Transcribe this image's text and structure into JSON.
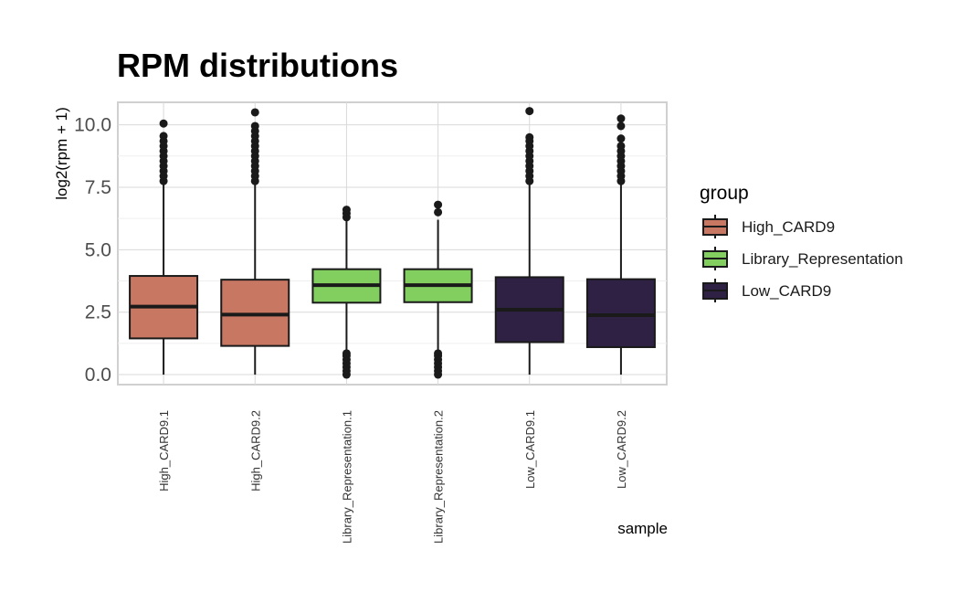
{
  "chart_data": {
    "type": "box",
    "title": "RPM distributions",
    "xlabel": "sample",
    "ylabel": "log2(rpm + 1)",
    "ylim": [
      -0.4,
      10.9
    ],
    "yticks": [
      "0.0",
      "2.5",
      "5.0",
      "7.5",
      "10.0"
    ],
    "ytick_values": [
      0,
      2.5,
      5,
      7.5,
      10
    ],
    "grid": true,
    "legend": {
      "title": "group",
      "placement": "right",
      "entries": [
        "High_CARD9",
        "Library_Representation",
        "Low_CARD9"
      ]
    },
    "group_colors": {
      "High_CARD9": "#c87763",
      "Library_Representation": "#82cf5f",
      "Low_CARD9": "#2f2143"
    },
    "categories": [
      "High_CARD9.1",
      "High_CARD9.2",
      "Library_Representation.1",
      "Library_Representation.2",
      "Low_CARD9.1",
      "Low_CARD9.2"
    ],
    "boxes": [
      {
        "sample": "High_CARD9.1",
        "group": "High_CARD9",
        "min": 0.0,
        "q1": 1.45,
        "median": 2.72,
        "q3": 3.95,
        "max": 7.7,
        "outliers_high": [
          7.75,
          7.95,
          8.15,
          8.35,
          8.55,
          8.75,
          8.95,
          9.15,
          9.35,
          9.55,
          10.05
        ],
        "outliers_low": []
      },
      {
        "sample": "High_CARD9.2",
        "group": "High_CARD9",
        "min": 0.0,
        "q1": 1.15,
        "median": 2.4,
        "q3": 3.8,
        "max": 7.7,
        "outliers_high": [
          7.75,
          7.95,
          8.15,
          8.35,
          8.55,
          8.75,
          8.95,
          9.15,
          9.35,
          9.55,
          9.75,
          9.95,
          10.5
        ],
        "outliers_low": []
      },
      {
        "sample": "Library_Representation.1",
        "group": "Library_Representation",
        "min": 0.9,
        "q1": 2.88,
        "median": 3.58,
        "q3": 4.22,
        "max": 6.2,
        "outliers_high": [
          6.3,
          6.45,
          6.6
        ],
        "outliers_low": [
          0.0,
          0.15,
          0.3,
          0.45,
          0.6,
          0.75,
          0.85
        ]
      },
      {
        "sample": "Library_Representation.2",
        "group": "Library_Representation",
        "min": 0.9,
        "q1": 2.9,
        "median": 3.58,
        "q3": 4.22,
        "max": 6.2,
        "outliers_high": [
          6.5,
          6.8
        ],
        "outliers_low": [
          0.0,
          0.15,
          0.3,
          0.45,
          0.6,
          0.75,
          0.85
        ]
      },
      {
        "sample": "Low_CARD9.1",
        "group": "Low_CARD9",
        "min": 0.0,
        "q1": 1.3,
        "median": 2.6,
        "q3": 3.9,
        "max": 7.7,
        "outliers_high": [
          7.75,
          7.95,
          8.15,
          8.35,
          8.55,
          8.75,
          8.95,
          9.15,
          9.35,
          9.5,
          10.55
        ],
        "outliers_low": []
      },
      {
        "sample": "Low_CARD9.2",
        "group": "Low_CARD9",
        "min": 0.0,
        "q1": 1.1,
        "median": 2.38,
        "q3": 3.82,
        "max": 7.7,
        "outliers_high": [
          7.75,
          7.95,
          8.15,
          8.35,
          8.55,
          8.75,
          8.95,
          9.15,
          9.45,
          9.95,
          10.25
        ],
        "outliers_low": []
      }
    ]
  }
}
